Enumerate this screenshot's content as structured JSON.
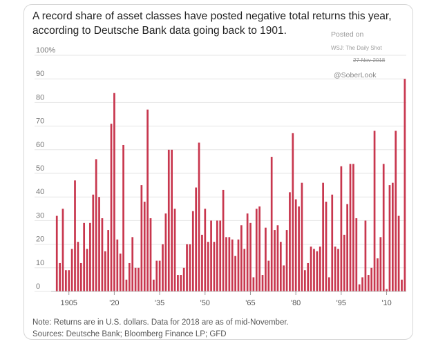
{
  "chart_data": {
    "type": "bar",
    "title": "A record share of asset classes have posted negative total returns this year, according to Deutsche Bank data going back to 1901.",
    "ylabel": "%",
    "ylim": [
      0,
      100
    ],
    "yticks": [
      "100%",
      "90",
      "80",
      "70",
      "60",
      "50",
      "40",
      "30",
      "20",
      "10",
      "0"
    ],
    "ytick_values": [
      100,
      90,
      80,
      70,
      60,
      50,
      40,
      30,
      20,
      10,
      0
    ],
    "xtick_labels": [
      {
        "label": "1905",
        "year": 1905
      },
      {
        "label": "'20",
        "year": 1920
      },
      {
        "label": "'35",
        "year": 1935
      },
      {
        "label": "'50",
        "year": 1950
      },
      {
        "label": "'65",
        "year": 1965
      },
      {
        "label": "'80",
        "year": 1980
      },
      {
        "label": "'95",
        "year": 1995
      },
      {
        "label": "'10",
        "year": 2010
      }
    ],
    "first_year": 1901,
    "values": [
      32,
      12,
      35,
      9,
      9,
      18,
      47,
      21,
      12,
      29,
      18,
      29,
      41,
      56,
      40,
      31,
      17,
      26,
      71,
      84,
      22,
      16,
      62,
      5,
      12,
      23,
      10,
      10,
      45,
      38,
      77,
      31,
      5,
      13,
      13,
      20,
      33,
      60,
      60,
      35,
      7,
      7,
      10,
      20,
      20,
      34,
      44,
      63,
      24,
      35,
      21,
      30,
      21,
      30,
      30,
      43,
      23,
      23,
      22,
      15,
      22,
      28,
      18,
      33,
      29,
      6,
      35,
      36,
      7,
      27,
      13,
      57,
      26,
      28,
      21,
      11,
      26,
      42,
      67,
      39,
      36,
      46,
      9,
      12,
      19,
      18,
      17,
      19,
      46,
      38,
      6,
      41,
      19,
      18,
      53,
      24,
      37,
      54,
      54,
      31,
      3,
      6,
      30,
      7,
      10,
      68,
      14,
      23,
      54,
      1,
      45,
      46,
      68,
      32,
      5,
      90
    ]
  },
  "title": "A record share of asset classes have posted negative total returns this year, according to Deutsche Bank data going back to 1901.",
  "stamp": {
    "posted": "Posted on",
    "source": "WSJ: The Daily Shot",
    "date": "27-Nov-2018",
    "handle": "@SoberLook"
  },
  "notes": {
    "line1": "Note: Returns are in U.S. dollars. Data for 2018 are as of mid-November.",
    "line2": "Sources: Deutsche Bank; Bloomberg Finance LP; GFD"
  },
  "colors": {
    "bar": "#c8374e",
    "grid": "#e5e5e5"
  }
}
